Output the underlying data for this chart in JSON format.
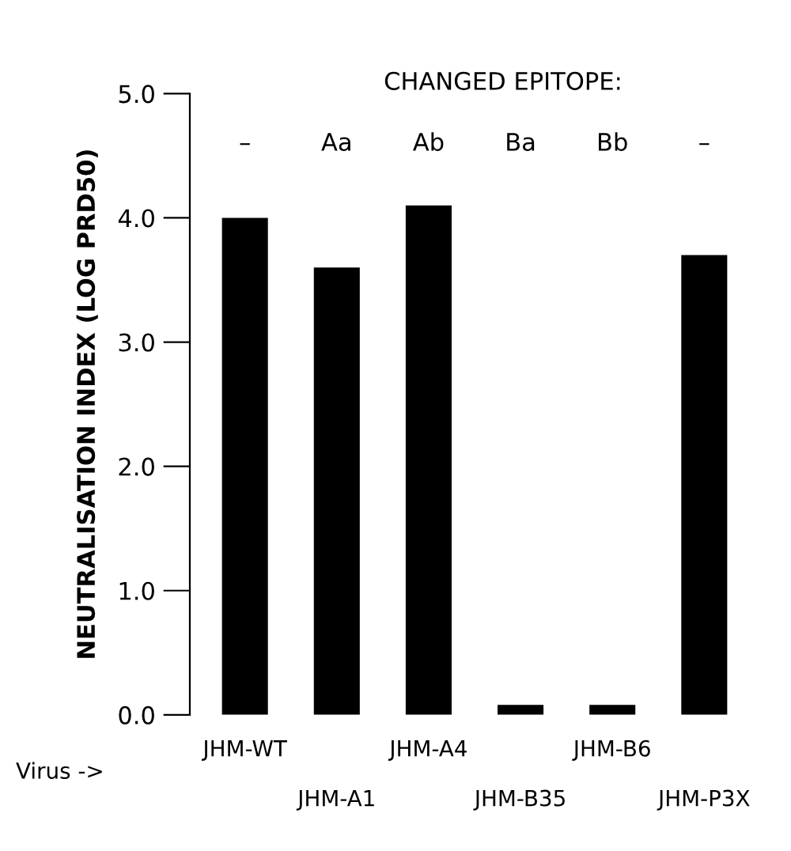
{
  "chart_data": {
    "type": "bar",
    "title": "CHANGED EPITOPE:",
    "ylabel": "NEUTRALISATION INDEX (LOG PRD50)",
    "categories": [
      "JHM-WT",
      "JHM-A1",
      "JHM-A4",
      "JHM-B35",
      "JHM-B6",
      "JHM-P3X"
    ],
    "values": [
      4.0,
      3.6,
      4.1,
      0.08,
      0.08,
      3.7
    ],
    "color": "#000000",
    "ylim": [
      0,
      5
    ],
    "yticks": [
      {
        "value": 0,
        "label": "0.0"
      },
      {
        "value": 1,
        "label": "1.0"
      },
      {
        "value": 2,
        "label": "2.0"
      },
      {
        "value": 3,
        "label": "3.0"
      },
      {
        "value": 4,
        "label": "4.0"
      },
      {
        "value": 5,
        "label": "5.0"
      }
    ],
    "grid": false,
    "legend": false,
    "annotations": [
      "–",
      "Aa",
      "Ab",
      "Ba",
      "Bb",
      "–",
      "Virus ->"
    ]
  }
}
